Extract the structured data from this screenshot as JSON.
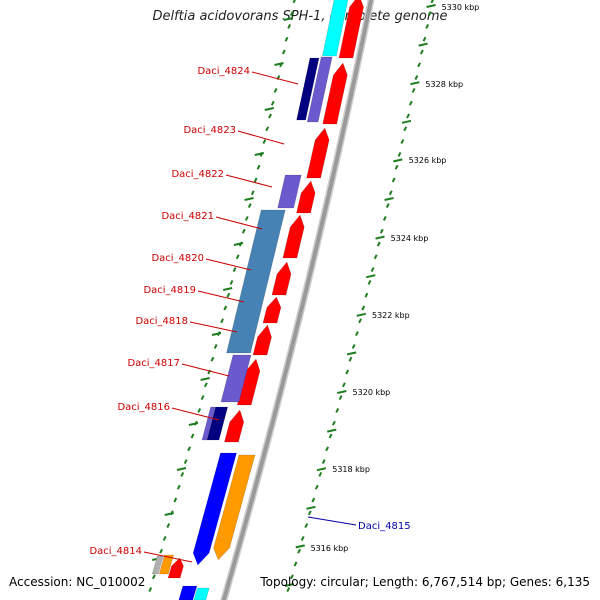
{
  "title": "Delftia acidovorans SPH-1, complete genome",
  "footer": {
    "accession": "Accession: NC_010002",
    "topology": "Topology: circular; Length: 6,767,514 bp; Genes: 6,135"
  },
  "colors": {
    "backbone": "#9a9a9a",
    "tick": "#1e7d1e",
    "forward_gene": "#ff0000",
    "label_red": "#cc0000",
    "label_blue": "#0000aa",
    "blue": "#0000ff",
    "navy": "#000080",
    "periwinkle": "#6a5acd",
    "steel": "#4682b4",
    "cyan": "#00ffff",
    "orange": "#ff9900"
  },
  "scale_labels": [
    "5316 kbp",
    "5318 kbp",
    "5320 kbp",
    "5322 kbp",
    "5324 kbp",
    "5326 kbp",
    "5328 kbp",
    "5330 kbp"
  ],
  "gene_labels": [
    {
      "id": "Daci_4824",
      "color": "red"
    },
    {
      "id": "Daci_4823",
      "color": "red"
    },
    {
      "id": "Daci_4822",
      "color": "red"
    },
    {
      "id": "Daci_4821",
      "color": "red"
    },
    {
      "id": "Daci_4820",
      "color": "red"
    },
    {
      "id": "Daci_4819",
      "color": "red"
    },
    {
      "id": "Daci_4818",
      "color": "red"
    },
    {
      "id": "Daci_4817",
      "color": "red"
    },
    {
      "id": "Daci_4816",
      "color": "red"
    },
    {
      "id": "Daci_4815",
      "color": "blue"
    },
    {
      "id": "Daci_4814",
      "color": "red"
    }
  ]
}
